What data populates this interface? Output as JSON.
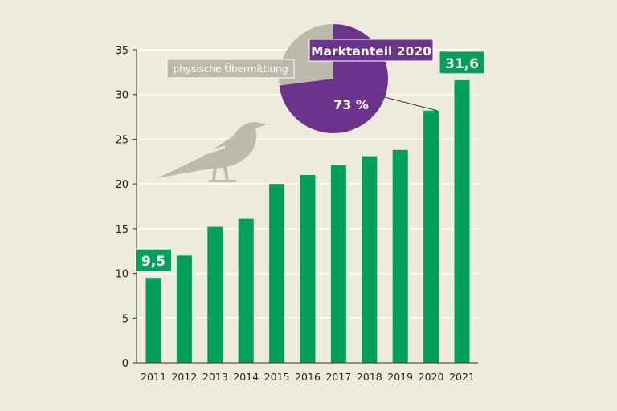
{
  "chart_data": {
    "type": "bar",
    "categories": [
      "2011",
      "2012",
      "2013",
      "2014",
      "2015",
      "2016",
      "2017",
      "2018",
      "2019",
      "2020",
      "2021"
    ],
    "values": [
      9.5,
      12.0,
      15.2,
      16.1,
      20.0,
      21.0,
      22.1,
      23.1,
      23.8,
      28.2,
      31.6
    ],
    "ylim": [
      0,
      35
    ],
    "yticks": [
      0,
      5,
      10,
      15,
      20,
      25,
      30,
      35
    ],
    "grid": true,
    "bar_color": "#00a05a",
    "value_labels": [
      {
        "category": "2011",
        "text": "9,5"
      },
      {
        "category": "2021",
        "text": "31,6"
      }
    ],
    "inset_pie": {
      "title": "Marktanteil 2020",
      "slices": [
        {
          "label": "73 %",
          "value": 73,
          "color": "#6b338b"
        },
        {
          "label": "physische Übermittlung",
          "value": 27,
          "color": "#bdbaab"
        }
      ],
      "refers_to": "2020"
    },
    "decoration": "magpie-bird"
  }
}
